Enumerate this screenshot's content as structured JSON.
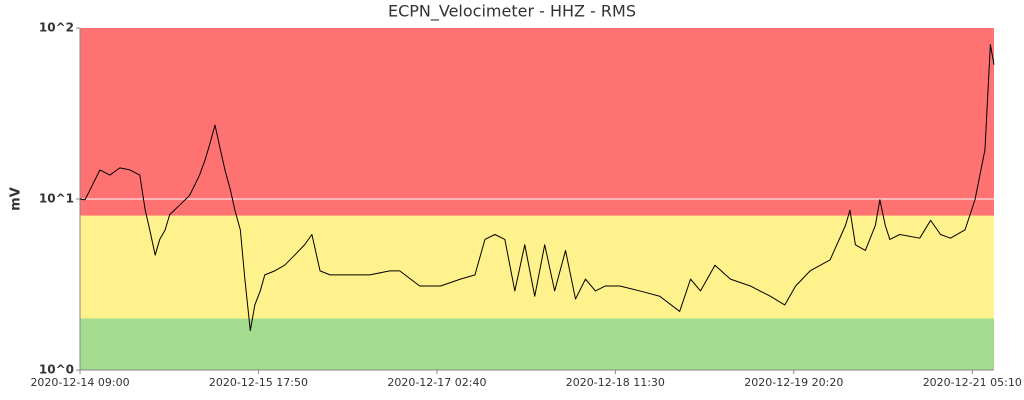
{
  "chart_data": {
    "type": "line",
    "title": "ECPN_Velocimeter - HHZ - RMS",
    "y_label": "mV",
    "log_y": true,
    "grid": true,
    "ylim": [
      1,
      100
    ],
    "yticks": [
      {
        "value": 1,
        "label": "10^0"
      },
      {
        "value": 10,
        "label": "10^1"
      },
      {
        "value": 100,
        "label": "10^2"
      }
    ],
    "xlim": [
      "2020-12-14 09:00",
      "2020-12-21 09:10"
    ],
    "xticks": [
      "2020-12-14 09:00",
      "2020-12-15 17:50",
      "2020-12-17 02:40",
      "2020-12-18 11:30",
      "2020-12-19 20:20",
      "2020-12-21 05:10"
    ],
    "bands": [
      {
        "from": 1,
        "to": 2,
        "color": "#a3dc8f"
      },
      {
        "from": 2,
        "to": 8,
        "color": "#fff28c"
      },
      {
        "from": 8,
        "to": 100,
        "color": "#ff7272"
      }
    ],
    "series": [
      {
        "color": "#000000",
        "x": [
          "2020-12-14 09:00",
          "2020-12-14 09:55",
          "2020-12-14 10:50",
          "2020-12-14 12:40",
          "2020-12-14 14:30",
          "2020-12-14 16:20",
          "2020-12-14 18:10",
          "2020-12-14 20:00",
          "2020-12-14 21:00",
          "2020-12-14 21:50",
          "2020-12-14 22:50",
          "2020-12-14 23:40",
          "2020-12-15 00:40",
          "2020-12-15 01:30",
          "2020-12-15 03:20",
          "2020-12-15 05:10",
          "2020-12-15 07:00",
          "2020-12-15 08:00",
          "2020-12-15 08:50",
          "2020-12-15 09:50",
          "2020-12-15 10:50",
          "2020-12-15 11:40",
          "2020-12-15 12:40",
          "2020-12-15 13:30",
          "2020-12-15 14:30",
          "2020-12-15 15:20",
          "2020-12-15 16:20",
          "2020-12-15 17:10",
          "2020-12-15 18:10",
          "2020-12-15 19:00",
          "2020-12-15 20:50",
          "2020-12-15 22:40",
          "2020-12-16 00:30",
          "2020-12-16 02:20",
          "2020-12-16 03:40",
          "2020-12-16 05:10",
          "2020-12-16 07:00",
          "2020-12-16 10:40",
          "2020-12-16 14:20",
          "2020-12-16 18:00",
          "2020-12-16 19:50",
          "2020-12-16 23:30",
          "2020-12-17 03:20",
          "2020-12-17 07:00",
          "2020-12-17 09:40",
          "2020-12-17 11:30",
          "2020-12-17 13:20",
          "2020-12-17 15:10",
          "2020-12-17 17:00",
          "2020-12-17 18:50",
          "2020-12-17 20:40",
          "2020-12-17 22:30",
          "2020-12-18 00:20",
          "2020-12-18 02:20",
          "2020-12-18 04:10",
          "2020-12-18 06:00",
          "2020-12-18 07:50",
          "2020-12-18 09:40",
          "2020-12-18 12:20",
          "2020-12-18 16:00",
          "2020-12-18 19:40",
          "2020-12-18 23:20",
          "2020-12-19 01:20",
          "2020-12-19 03:10",
          "2020-12-19 05:50",
          "2020-12-19 08:40",
          "2020-12-19 12:20",
          "2020-12-19 16:00",
          "2020-12-19 18:40",
          "2020-12-19 20:40",
          "2020-12-19 23:20",
          "2020-12-20 03:00",
          "2020-12-20 05:50",
          "2020-12-20 06:40",
          "2020-12-20 07:40",
          "2020-12-20 09:30",
          "2020-12-20 11:20",
          "2020-12-20 12:10",
          "2020-12-20 13:10",
          "2020-12-20 14:00",
          "2020-12-20 15:50",
          "2020-12-20 19:30",
          "2020-12-20 21:30",
          "2020-12-20 23:20",
          "2020-12-21 01:10",
          "2020-12-21 03:50",
          "2020-12-21 05:40",
          "2020-12-21 07:30",
          "2020-12-21 08:30",
          "2020-12-21 09:10"
        ],
        "values": [
          10,
          9.9,
          11.3,
          14.8,
          13.8,
          15.2,
          14.8,
          13.8,
          8.6,
          6.6,
          4.7,
          5.8,
          6.6,
          8.1,
          9.2,
          10.5,
          13.8,
          16.9,
          20.7,
          27.1,
          19.4,
          14.8,
          11.3,
          8.6,
          6.6,
          3.4,
          1.7,
          2.4,
          2.9,
          3.6,
          3.8,
          4.1,
          4.7,
          5.4,
          6.2,
          3.8,
          3.6,
          3.6,
          3.6,
          3.8,
          3.8,
          3.1,
          3.1,
          3.4,
          3.6,
          5.8,
          6.2,
          5.8,
          2.9,
          5.4,
          2.7,
          5.4,
          2.9,
          5.0,
          2.6,
          3.4,
          2.9,
          3.1,
          3.1,
          2.9,
          2.7,
          2.2,
          3.4,
          2.9,
          4.1,
          3.4,
          3.1,
          2.7,
          2.4,
          3.1,
          3.8,
          4.4,
          7.0,
          8.6,
          5.4,
          5.0,
          7.0,
          9.9,
          7.0,
          5.8,
          6.2,
          5.9,
          7.5,
          6.2,
          5.9,
          6.6,
          9.9,
          19.4,
          80,
          61
        ]
      }
    ]
  }
}
